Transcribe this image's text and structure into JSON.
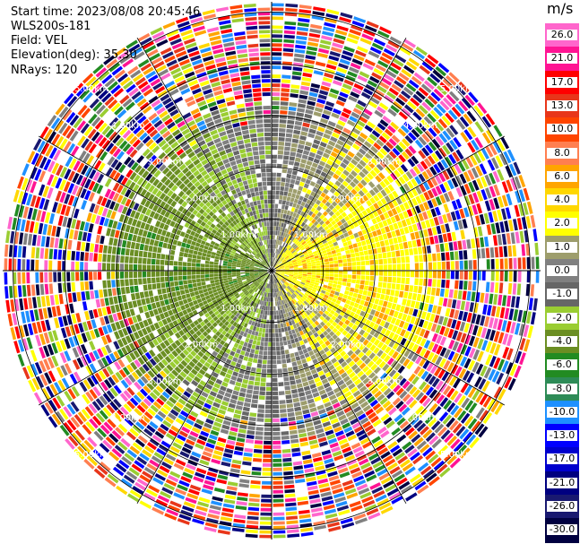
{
  "header": {
    "start_time": "Start time: 2023/08/08 20:45:46",
    "instrument": "WLS200s-181",
    "field": "Field: VEL",
    "elevation": "Elevation(deg): 35.30",
    "nrays": "NRays: 120"
  },
  "colorbar": {
    "unit": "m/s",
    "bins": [
      {
        "label": "26.0",
        "color": "#ff66cc"
      },
      {
        "label": "21.0",
        "color": "#ff1493"
      },
      {
        "label": "17.0",
        "color": "#ff0000"
      },
      {
        "label": "13.0",
        "color": "#e8361a"
      },
      {
        "label": "10.0",
        "color": "#ff4500"
      },
      {
        "label": "8.0",
        "color": "#ff7f50"
      },
      {
        "label": "6.0",
        "color": "#ffa500"
      },
      {
        "label": "4.0",
        "color": "#ffd700"
      },
      {
        "label": "2.0",
        "color": "#ffff00"
      },
      {
        "label": "1.0",
        "color": "#9d9d6c"
      },
      {
        "label": "0.0",
        "color": "#808080"
      },
      {
        "label": "-1.0",
        "color": "#666666"
      },
      {
        "label": "-2.0",
        "color": "#9acd32"
      },
      {
        "label": "-4.0",
        "color": "#6b8e23"
      },
      {
        "label": "-6.0",
        "color": "#228b22"
      },
      {
        "label": "-8.0",
        "color": "#2e8b57"
      },
      {
        "label": "-10.0",
        "color": "#1e90ff"
      },
      {
        "label": "-13.0",
        "color": "#0000ff"
      },
      {
        "label": "-17.0",
        "color": "#0000cd"
      },
      {
        "label": "-21.0",
        "color": "#000080"
      },
      {
        "label": "-26.0",
        "color": "#191970"
      },
      {
        "label": "-30.0",
        "color": "#000040"
      }
    ]
  },
  "chart_data": {
    "type": "heatmap",
    "projection": "polar PPI",
    "field": "VEL",
    "unit": "m/s",
    "elevation_deg": 35.3,
    "nrays": 120,
    "range_rings_km": [
      1.0,
      2.0,
      3.0,
      4.0,
      5.0
    ],
    "ring_labels": [
      "1.00km",
      "2.00km",
      "3.00km",
      "4.00km",
      "5.00km"
    ],
    "max_range_km": 5.2,
    "near_field_pattern": "negative velocities (green) to the west, positive velocities (yellow/orange) to the east, near-zero (grey) along north-south axis; noise (random colors) beyond ~3.2 km",
    "colorscale_limits": [
      -30,
      30
    ]
  }
}
